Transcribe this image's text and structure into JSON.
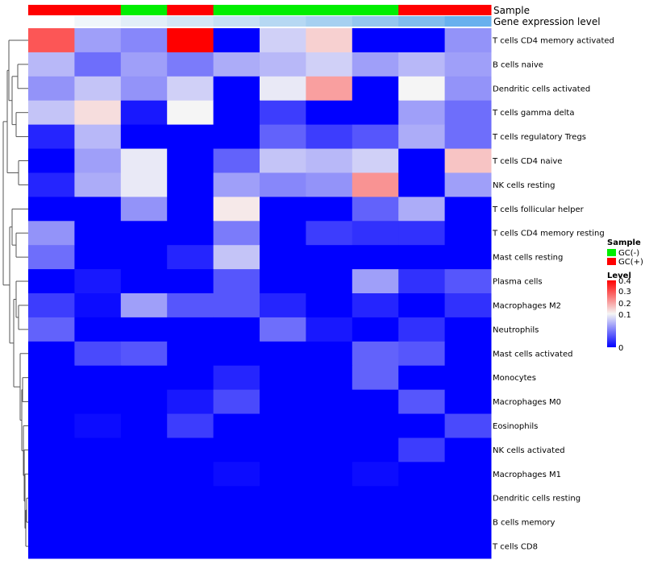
{
  "chart_data": {
    "type": "heatmap",
    "tracks": [
      {
        "label": "Sample",
        "values": [
          "GC(+)",
          "GC(+)",
          "GC(-)",
          "GC(+)",
          "GC(-)",
          "GC(-)",
          "GC(-)",
          "GC(-)",
          "GC(+)",
          "GC(+)"
        ]
      },
      {
        "label": "Gene expression level",
        "colors": [
          "#ffffff",
          "#f0f6fb",
          "#e2eef8",
          "#d4e6f6",
          "#c6e0f5",
          "#b6d8f3",
          "#a6d0f1",
          "#94c6ef",
          "#80bcee",
          "#68b0ee"
        ]
      }
    ],
    "row_labels": [
      "T cells CD4 memory activated",
      "B cells naive",
      "Dendritic cells activated",
      "T cells gamma delta",
      "T cells regulatory  Tregs",
      "T cells CD4 naive",
      "NK cells resting",
      "T cells follicular helper",
      "T cells CD4 memory resting",
      "Mast cells resting",
      "Plasma cells",
      "Macrophages M2",
      "Neutrophils",
      "Mast cells activated",
      "Monocytes",
      "Macrophages M0",
      "Eosinophils",
      "NK cells activated",
      "Macrophages M1",
      "Dendritic cells resting",
      "B cells memory",
      "T cells CD8"
    ],
    "values": [
      [
        0.33,
        0.13,
        0.11,
        0.4,
        0.0,
        0.17,
        0.23,
        0.0,
        0.0,
        0.12
      ],
      [
        0.15,
        0.09,
        0.13,
        0.1,
        0.14,
        0.15,
        0.17,
        0.13,
        0.15,
        0.13
      ],
      [
        0.12,
        0.16,
        0.12,
        0.17,
        0.0,
        0.19,
        0.27,
        0.0,
        0.2,
        0.12
      ],
      [
        0.16,
        0.22,
        0.02,
        0.2,
        0.0,
        0.05,
        0.0,
        0.0,
        0.13,
        0.09
      ],
      [
        0.03,
        0.15,
        0.0,
        0.0,
        0.0,
        0.08,
        0.05,
        0.07,
        0.14,
        0.09
      ],
      [
        0.0,
        0.13,
        0.19,
        0.0,
        0.08,
        0.16,
        0.15,
        0.17,
        0.0,
        0.24
      ],
      [
        0.03,
        0.14,
        0.19,
        0.0,
        0.13,
        0.11,
        0.12,
        0.28,
        0.0,
        0.13
      ],
      [
        0.0,
        0.0,
        0.12,
        0.0,
        0.21,
        0.0,
        0.0,
        0.08,
        0.14,
        0.0
      ],
      [
        0.12,
        0.0,
        0.0,
        0.0,
        0.1,
        0.0,
        0.05,
        0.04,
        0.04,
        0.0
      ],
      [
        0.09,
        0.0,
        0.0,
        0.03,
        0.16,
        0.0,
        0.0,
        0.0,
        0.0,
        0.0
      ],
      [
        0.0,
        0.02,
        0.0,
        0.0,
        0.07,
        0.0,
        0.0,
        0.13,
        0.04,
        0.07
      ],
      [
        0.05,
        0.01,
        0.13,
        0.07,
        0.07,
        0.03,
        0.0,
        0.03,
        0.0,
        0.04
      ],
      [
        0.08,
        0.0,
        0.0,
        0.0,
        0.0,
        0.09,
        0.02,
        0.0,
        0.04,
        0.0
      ],
      [
        0.0,
        0.06,
        0.07,
        0.0,
        0.0,
        0.0,
        0.0,
        0.08,
        0.07,
        0.0
      ],
      [
        0.0,
        0.0,
        0.0,
        0.0,
        0.03,
        0.0,
        0.0,
        0.08,
        0.0,
        0.0
      ],
      [
        0.0,
        0.0,
        0.0,
        0.02,
        0.06,
        0.0,
        0.0,
        0.0,
        0.07,
        0.0
      ],
      [
        0.0,
        0.01,
        0.0,
        0.05,
        0.0,
        0.0,
        0.0,
        0.0,
        0.0,
        0.06
      ],
      [
        0.0,
        0.0,
        0.0,
        0.0,
        0.0,
        0.0,
        0.0,
        0.0,
        0.05,
        0.0
      ],
      [
        0.0,
        0.0,
        0.0,
        0.0,
        0.01,
        0.0,
        0.0,
        0.01,
        0.0,
        0.0
      ],
      [
        0.0,
        0.0,
        0.0,
        0.0,
        0.0,
        0.0,
        0.0,
        0.0,
        0.0,
        0.0
      ],
      [
        0.0,
        0.0,
        0.0,
        0.0,
        0.0,
        0.0,
        0.0,
        0.0,
        0.0,
        0.0
      ],
      [
        0.0,
        0.0,
        0.0,
        0.0,
        0.0,
        0.0,
        0.0,
        0.0,
        0.0,
        0.0
      ]
    ],
    "color_scale": {
      "min": 0,
      "mid": 0.2,
      "max": 0.4,
      "low_color": "#0000ff",
      "mid_color": "#f5f5f5",
      "high_color": "#ff0000"
    },
    "legend": {
      "sample": {
        "title": "Sample",
        "items": [
          {
            "label": "GC(-)",
            "color": "#00ee00"
          },
          {
            "label": "GC(+)",
            "color": "#ff0000"
          }
        ]
      },
      "level": {
        "title": "Level",
        "ticks": [
          "0.4",
          "0.3",
          "0.2",
          "0.1",
          "0"
        ]
      }
    },
    "dendrogram": "rows",
    "legend_position": "right"
  }
}
